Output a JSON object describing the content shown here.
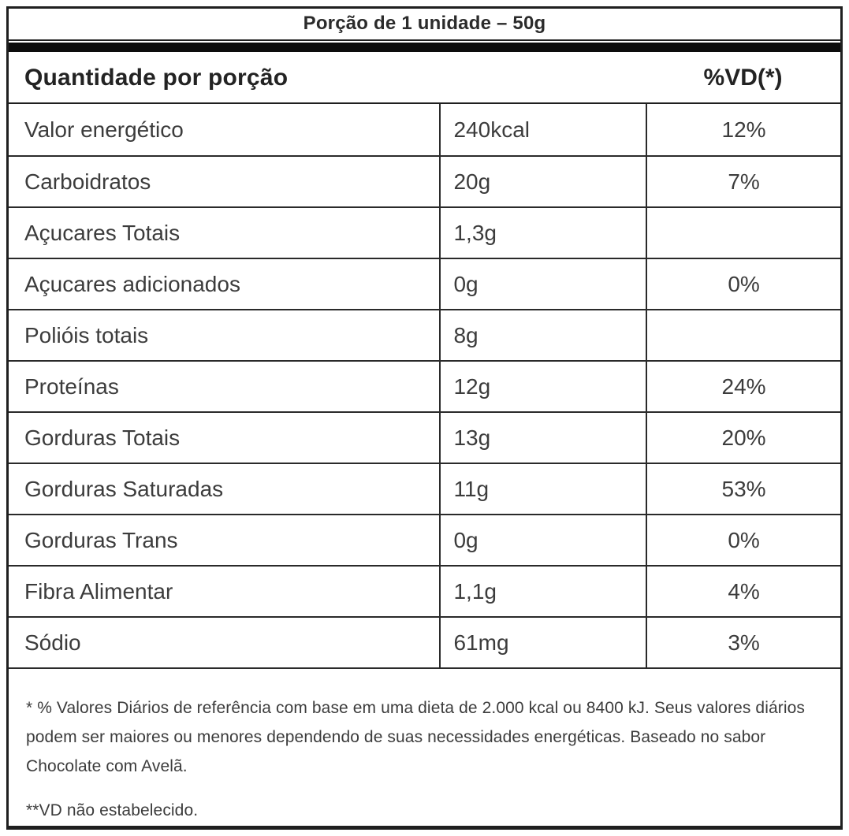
{
  "serving": {
    "title": "Porção de 1 unidade – 50g"
  },
  "table": {
    "header": {
      "quantity_label": "Quantidade por porção",
      "dv_label": "%VD(*)"
    },
    "columns": [
      "nutrient",
      "amount_per_serving",
      "percent_daily_value"
    ],
    "rows": [
      {
        "name": "Valor energético",
        "amount": "240kcal",
        "dv": "12%"
      },
      {
        "name": "Carboidratos",
        "amount": "20g",
        "dv": "7%"
      },
      {
        "name": "Açucares Totais",
        "amount": "1,3g",
        "dv": ""
      },
      {
        "name": "Açucares adicionados",
        "amount": "0g",
        "dv": "0%"
      },
      {
        "name": "Polióis totais",
        "amount": "8g",
        "dv": ""
      },
      {
        "name": "Proteínas",
        "amount": "12g",
        "dv": "24%"
      },
      {
        "name": "Gorduras Totais",
        "amount": "13g",
        "dv": "20%"
      },
      {
        "name": "Gorduras Saturadas",
        "amount": "11g",
        "dv": "53%"
      },
      {
        "name": "Gorduras Trans",
        "amount": "0g",
        "dv": "0%"
      },
      {
        "name": "Fibra Alimentar",
        "amount": "1,1g",
        "dv": "4%"
      },
      {
        "name": "Sódio",
        "amount": "61mg",
        "dv": "3%"
      }
    ]
  },
  "footnotes": {
    "daily_values": "* % Valores Diários de referência com base em uma dieta de 2.000 kcal ou 8400 kJ. Seus valores diários podem ser maiores ou menores dependendo de suas necessidades energéticas. Baseado no sabor Chocolate com Avelã.",
    "vd_note": "**VD não estabelecido."
  },
  "colors": {
    "background": "#ffffff",
    "border": "#1f1f1f",
    "bar": "#0d0d0d",
    "text": "#3c3c3c",
    "heading_text": "#232323"
  }
}
